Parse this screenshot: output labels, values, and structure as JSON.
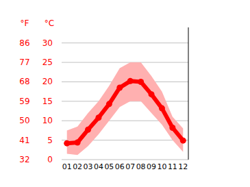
{
  "chart_data": {
    "type": "line",
    "y_label": "°C",
    "y2_label": "°F",
    "categories": [
      "01",
      "02",
      "03",
      "04",
      "05",
      "06",
      "07",
      "08",
      "09",
      "10",
      "11",
      "12"
    ],
    "values": [
      4.2,
      4.4,
      7.7,
      10.8,
      14.3,
      18.5,
      20.2,
      20.0,
      16.8,
      13.2,
      8.2,
      4.9
    ],
    "high": [
      7.5,
      8.5,
      12,
      15,
      19,
      23.5,
      25,
      25,
      21.5,
      17.5,
      11,
      8
    ],
    "low": [
      1.5,
      1.2,
      3.5,
      6.5,
      10,
      13.5,
      15,
      15,
      12,
      9,
      5,
      2
    ],
    "color": "#ff0000",
    "band_color": "#ffb0b0",
    "ylim": [
      0,
      34
    ],
    "yticks": [
      0,
      5,
      10,
      15,
      20,
      25,
      30
    ],
    "y2lim": [
      32,
      93.2
    ],
    "y2ticks": [
      32,
      41,
      50,
      59,
      68,
      77,
      86
    ],
    "grid": true,
    "marker": "circle"
  }
}
